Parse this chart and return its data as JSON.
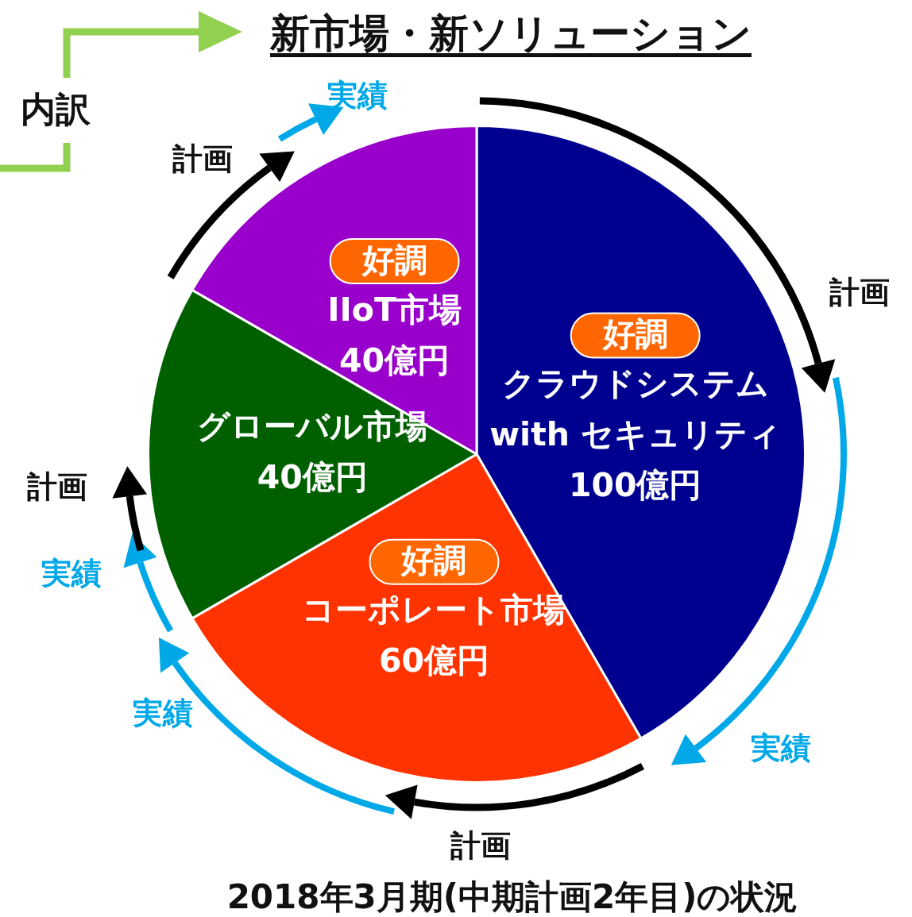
{
  "chart_data": {
    "type": "pie",
    "title": "新市場・新ソリューション",
    "categories": [
      "クラウドシステム\nwith セキュリティ",
      "コーポレート市場",
      "グローバル市場",
      "IIoT市場"
    ],
    "values": [
      100,
      60,
      40,
      40
    ],
    "colors": [
      "#000090",
      "#ff3300",
      "#006000",
      "#9900cc"
    ],
    "value_labels": [
      "100億円",
      "60億円",
      "40億円",
      "40億円"
    ],
    "legend": false,
    "annotations": [
      "内訳",
      "計画",
      "実績",
      "計画",
      "実績",
      "計画",
      "実績",
      "実績",
      "計画",
      "2018年3月期(中期計画2年目)の状況",
      {
        "text": "好調",
        "x": "クラウドシステム\nwith セキュリティ"
      },
      {
        "text": "好調",
        "x": "コーポレート市場"
      },
      {
        "text": "好調",
        "x": "IIoT市場"
      }
    ]
  }
}
